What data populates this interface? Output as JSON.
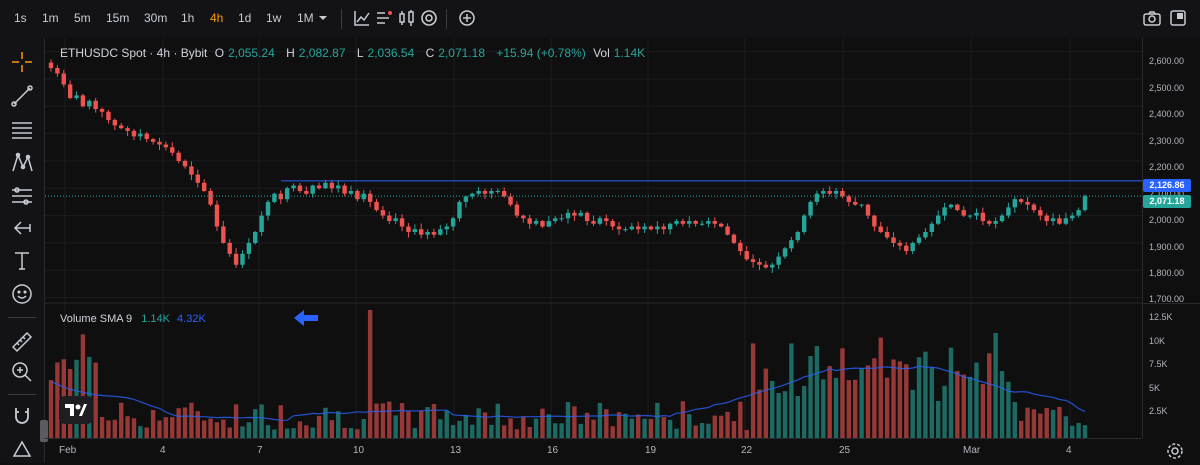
{
  "toolbar": {
    "timeframes": [
      "1s",
      "1m",
      "5m",
      "15m",
      "30m",
      "1h",
      "4h",
      "1d",
      "1w",
      "1M"
    ],
    "active_timeframe": "4h"
  },
  "legend": {
    "symbol": "ETHUSDC Spot · 4h · Bybit",
    "o_label": "O",
    "o_value": "2,055.24",
    "h_label": "H",
    "h_value": "2,082.87",
    "l_label": "L",
    "l_value": "2,036.54",
    "c_label": "C",
    "c_value": "2,071.18",
    "change": "+15.94 (+0.78%)",
    "vol_label": "Vol",
    "vol_value": "1.14K"
  },
  "volume_legend": {
    "name": "Volume SMA 9",
    "value1": "1.14K",
    "value2": "4.32K"
  },
  "price_axis": {
    "labels": [
      "2,600.00",
      "2,500.00",
      "2,400.00",
      "2,300.00",
      "2,200.00",
      "2,100.00",
      "2,000.00",
      "1,900.00",
      "1,800.00",
      "1,700.00"
    ],
    "line_tag": "2,126.86",
    "last_tag": "2,071.18"
  },
  "volume_axis": {
    "labels": [
      "12.5K",
      "10K",
      "7.5K",
      "5K",
      "2.5K"
    ]
  },
  "time_axis": {
    "labels": [
      "Feb",
      "4",
      "7",
      "10",
      "13",
      "16",
      "19",
      "22",
      "25",
      "Mar",
      "4"
    ]
  },
  "colors": {
    "up": "#26a69a",
    "down": "#ef5350",
    "hline": "#2962ff",
    "sma": "#2962ff"
  },
  "chart_data": {
    "type": "candlestick",
    "symbol": "ETHUSDC",
    "horizontal_line": 2126.86,
    "last_price": 2071.18,
    "price_range": [
      1680,
      2650
    ],
    "volume_range": [
      0,
      13000
    ],
    "closes": [
      2540,
      2520,
      2480,
      2430,
      2440,
      2400,
      2420,
      2390,
      2380,
      2350,
      2330,
      2320,
      2310,
      2290,
      2300,
      2280,
      2270,
      2260,
      2250,
      2230,
      2200,
      2180,
      2150,
      2120,
      2090,
      2040,
      1960,
      1900,
      1860,
      1820,
      1860,
      1900,
      1940,
      2000,
      2050,
      2080,
      2060,
      2100,
      2110,
      2090,
      2080,
      2110,
      2100,
      2120,
      2100,
      2110,
      2080,
      2090,
      2060,
      2080,
      2050,
      2020,
      2000,
      1980,
      1990,
      1960,
      1940,
      1950,
      1930,
      1940,
      1930,
      1950,
      1960,
      1990,
      2050,
      2070,
      2080,
      2090,
      2080,
      2090,
      2090,
      2070,
      2040,
      2000,
      1990,
      1970,
      1980,
      1960,
      1980,
      1990,
      1990,
      2010,
      2000,
      2010,
      1980,
      1970,
      1990,
      1980,
      1960,
      1950,
      1950,
      1960,
      1950,
      1960,
      1950,
      1960,
      1950,
      1970,
      1980,
      1970,
      1980,
      1970,
      1970,
      1980,
      1970,
      1960,
      1930,
      1900,
      1870,
      1840,
      1830,
      1820,
      1810,
      1820,
      1850,
      1880,
      1910,
      1940,
      2000,
      2050,
      2080,
      2090,
      2080,
      2090,
      2070,
      2050,
      2040,
      2040,
      2000,
      1960,
      1940,
      1920,
      1900,
      1890,
      1870,
      1900,
      1920,
      1940,
      1970,
      2000,
      2030,
      2040,
      2020,
      2000,
      2000,
      2010,
      1980,
      1970,
      1980,
      2000,
      2030,
      2060,
      2050,
      2040,
      2020,
      2000,
      1980,
      1990,
      1970,
      1990,
      2000,
      2020,
      2071
    ]
  }
}
